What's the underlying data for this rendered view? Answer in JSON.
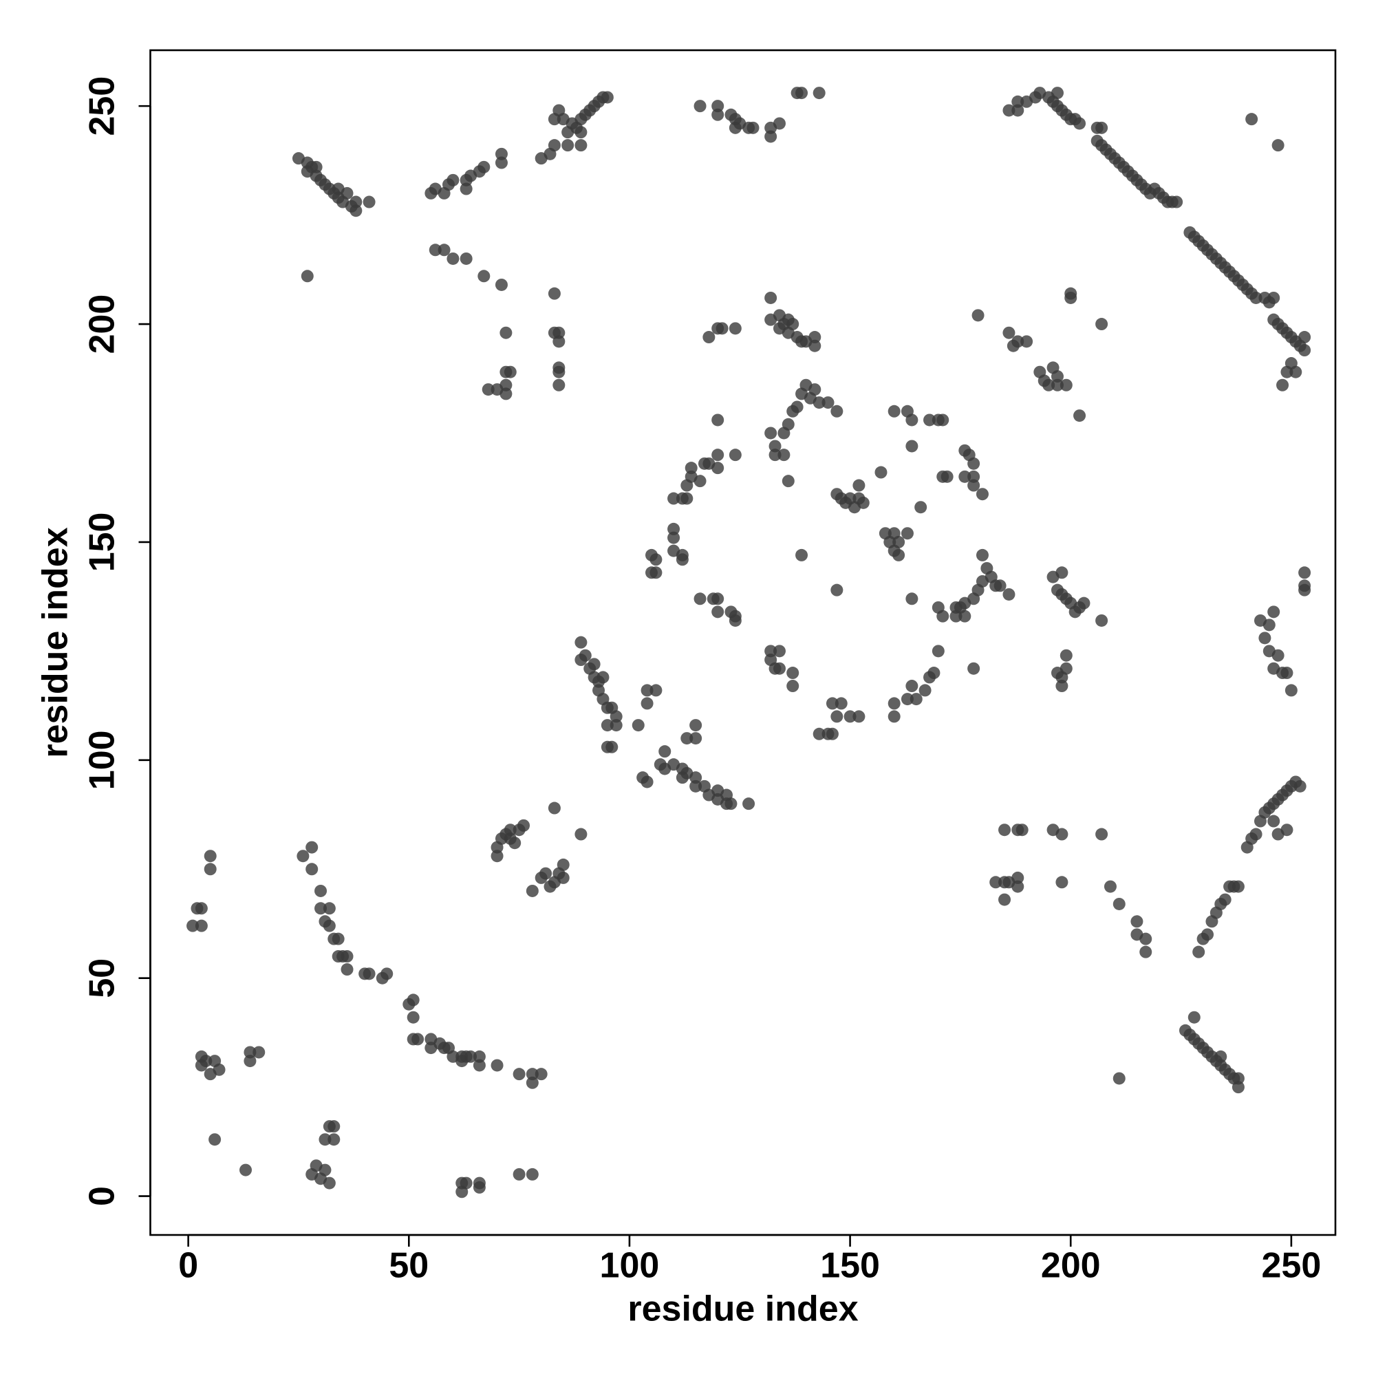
{
  "chart_data": {
    "type": "scatter",
    "xlabel": "residue index",
    "ylabel": "residue index",
    "xlim": [
      -8.6,
      260
    ],
    "ylim": [
      -8.9,
      262.8
    ],
    "xticks": [
      0,
      50,
      100,
      150,
      200,
      250
    ],
    "yticks": [
      0,
      50,
      100,
      150,
      200,
      250
    ],
    "color": "#3a3a3a",
    "opacity": 0.8,
    "grid": false,
    "x": [
      1,
      2,
      3,
      3,
      5,
      5,
      3,
      3,
      4,
      5,
      6,
      7,
      6,
      13,
      14,
      14,
      16,
      26,
      28,
      28,
      28,
      29,
      30,
      31,
      31,
      32,
      32,
      33,
      33,
      30,
      30,
      31,
      32,
      32,
      33,
      34,
      34,
      35,
      36,
      36,
      40,
      41,
      44,
      45,
      50,
      51,
      51,
      51,
      52,
      55,
      55,
      57,
      58,
      59,
      60,
      62,
      62,
      63,
      64,
      66,
      66,
      70,
      75,
      78,
      78,
      80,
      62,
      62,
      63,
      66,
      66,
      75,
      78,
      27,
      25,
      27,
      27,
      28,
      29,
      29,
      30,
      31,
      32,
      33,
      34,
      34,
      35,
      36,
      37,
      38,
      38,
      41,
      55,
      56,
      58,
      59,
      60,
      63,
      63,
      64,
      66,
      67,
      71,
      71,
      56,
      58,
      60,
      63,
      67,
      71,
      80,
      82,
      83,
      83,
      84,
      85,
      86,
      86,
      87,
      88,
      89,
      89,
      90,
      91,
      92,
      93,
      94,
      95,
      89,
      68,
      70,
      72,
      72,
      72,
      73,
      72,
      83,
      83,
      84,
      84,
      84,
      84,
      84,
      70,
      70,
      71,
      72,
      73,
      73,
      74,
      75,
      76,
      83,
      89,
      78,
      80,
      81,
      82,
      83,
      84,
      85,
      85,
      89,
      89,
      90,
      91,
      92,
      92,
      93,
      93,
      94,
      94,
      95,
      95,
      96,
      97,
      97,
      96,
      95,
      102,
      103,
      104,
      107,
      108,
      110,
      112,
      112,
      113,
      115,
      115,
      117,
      118,
      120,
      120,
      122,
      122,
      123,
      127,
      104,
      104,
      106,
      108,
      113,
      115,
      115,
      105,
      105,
      106,
      106,
      110,
      110,
      110,
      112,
      112,
      110,
      112,
      113,
      113,
      114,
      114,
      116,
      117,
      118,
      120,
      120,
      120,
      124,
      116,
      119,
      120,
      120,
      123,
      124,
      124,
      116,
      120,
      120,
      123,
      124,
      124,
      125,
      127,
      128,
      132,
      132,
      134,
      138,
      139,
      143,
      118,
      120,
      121,
      124,
      132,
      132,
      134,
      134,
      135,
      136,
      136,
      137,
      138,
      139,
      140,
      142,
      142,
      132,
      133,
      133,
      135,
      135,
      136,
      137,
      138,
      139,
      140,
      141,
      142,
      143,
      145,
      147,
      136,
      132,
      132,
      133,
      134,
      134,
      137,
      137,
      139,
      143,
      145,
      146,
      146,
      147,
      148,
      150,
      152,
      147,
      147,
      148,
      149,
      150,
      151,
      152,
      152,
      153,
      157,
      158,
      159,
      160,
      160,
      161,
      161,
      163,
      160,
      163,
      164,
      164,
      166,
      168,
      170,
      171,
      171,
      172,
      160,
      160,
      163,
      164,
      165,
      167,
      168,
      169,
      170,
      170,
      171,
      174,
      175,
      176,
      164,
      176,
      177,
      178,
      178,
      178,
      180,
      176,
      178,
      174,
      176,
      178,
      179,
      180,
      181,
      182,
      183,
      184,
      186,
      180,
      179,
      186,
      187,
      188,
      190,
      193,
      194,
      195,
      196,
      197,
      197,
      199,
      202,
      200,
      200,
      207,
      185,
      188,
      189,
      196,
      198,
      207,
      183,
      185,
      186,
      188,
      188,
      185,
      198,
      196,
      197,
      198,
      198,
      199,
      200,
      201,
      202,
      203,
      207,
      197,
      198,
      199,
      199,
      198,
      209,
      211,
      215,
      215,
      217,
      217,
      211,
      186,
      188,
      188,
      190,
      192,
      193,
      195,
      196,
      197,
      197,
      198,
      199,
      200,
      201,
      202,
      206,
      207,
      206,
      207,
      208,
      209,
      210,
      211,
      212,
      213,
      214,
      215,
      216,
      217,
      218,
      219,
      220,
      221,
      222,
      223,
      224,
      227,
      228,
      229,
      230,
      231,
      232,
      233,
      234,
      235,
      236,
      237,
      238,
      239,
      240,
      241,
      242,
      244,
      245,
      246,
      246,
      247,
      248,
      249,
      250,
      251,
      252,
      253,
      253,
      248,
      249,
      250,
      251,
      241,
      247,
      226,
      227,
      228,
      228,
      229,
      230,
      231,
      232,
      233,
      234,
      234,
      235,
      236,
      237,
      238,
      238,
      229,
      230,
      231,
      232,
      233,
      234,
      235,
      236,
      237,
      238,
      240,
      241,
      242,
      243,
      244,
      245,
      246,
      247,
      248,
      249,
      250,
      251,
      252,
      247,
      249,
      246,
      243,
      244,
      245,
      246,
      245,
      246,
      247,
      248,
      249,
      250,
      253,
      253,
      253
    ],
    "values": [
      62,
      66,
      66,
      62,
      78,
      75,
      32,
      30,
      31,
      28,
      31,
      29,
      13,
      6,
      33,
      31,
      33,
      78,
      80,
      75,
      5,
      7,
      4,
      6,
      13,
      3,
      16,
      13,
      16,
      70,
      66,
      63,
      62,
      66,
      59,
      59,
      55,
      55,
      52,
      55,
      51,
      51,
      50,
      51,
      44,
      45,
      41,
      36,
      36,
      36,
      34,
      35,
      34,
      34,
      32,
      32,
      31,
      32,
      32,
      30,
      32,
      30,
      28,
      28,
      26,
      28,
      1,
      3,
      3,
      3,
      2,
      5,
      5,
      211,
      238,
      237,
      235,
      236,
      234,
      236,
      233,
      232,
      231,
      230,
      229,
      231,
      228,
      230,
      227,
      226,
      228,
      228,
      230,
      231,
      230,
      232,
      233,
      233,
      231,
      234,
      235,
      236,
      237,
      239,
      217,
      217,
      215,
      215,
      211,
      209,
      238,
      239,
      241,
      247,
      249,
      247,
      244,
      241,
      246,
      245,
      244,
      247,
      248,
      249,
      250,
      251,
      252,
      252,
      241,
      185,
      185,
      186,
      184,
      189,
      189,
      198,
      207,
      198,
      198,
      196,
      190,
      186,
      189,
      80,
      78,
      82,
      83,
      84,
      82,
      81,
      84,
      85,
      89,
      83,
      70,
      73,
      74,
      71,
      72,
      74,
      73,
      76,
      127,
      123,
      124,
      121,
      119,
      122,
      118,
      116,
      114,
      119,
      112,
      108,
      112,
      110,
      108,
      103,
      103,
      108,
      96,
      95,
      99,
      98,
      99,
      98,
      96,
      97,
      96,
      94,
      94,
      92,
      93,
      91,
      92,
      90,
      90,
      90,
      116,
      113,
      116,
      102,
      105,
      105,
      108,
      147,
      143,
      146,
      143,
      153,
      151,
      148,
      146,
      147,
      160,
      160,
      160,
      163,
      165,
      167,
      164,
      168,
      168,
      170,
      167,
      178,
      170,
      137,
      137,
      137,
      134,
      134,
      133,
      132,
      250,
      250,
      248,
      248,
      247,
      245,
      246,
      245,
      245,
      245,
      243,
      246,
      253,
      253,
      253,
      197,
      199,
      199,
      199,
      206,
      201,
      202,
      199,
      200,
      201,
      198,
      200,
      197,
      196,
      196,
      197,
      195,
      175,
      172,
      170,
      170,
      175,
      177,
      180,
      181,
      184,
      186,
      183,
      185,
      182,
      182,
      180,
      164,
      125,
      123,
      121,
      125,
      121,
      120,
      117,
      147,
      106,
      106,
      106,
      113,
      110,
      113,
      110,
      110,
      139,
      161,
      160,
      159,
      160,
      158,
      160,
      163,
      159,
      166,
      152,
      150,
      152,
      148,
      147,
      150,
      152,
      180,
      180,
      178,
      172,
      158,
      178,
      178,
      178,
      165,
      165,
      110,
      113,
      114,
      117,
      114,
      116,
      119,
      120,
      125,
      135,
      133,
      133,
      135,
      133,
      137,
      171,
      170,
      168,
      165,
      163,
      161,
      165,
      121,
      135,
      136,
      137,
      139,
      141,
      144,
      142,
      140,
      140,
      138,
      147,
      202,
      198,
      195,
      196,
      196,
      189,
      187,
      186,
      190,
      188,
      186,
      186,
      179,
      207,
      206,
      200,
      84,
      84,
      84,
      84,
      83,
      83,
      72,
      72,
      72,
      73,
      71,
      68,
      72,
      142,
      139,
      138,
      143,
      137,
      136,
      134,
      135,
      136,
      132,
      120,
      119,
      121,
      124,
      117,
      71,
      67,
      63,
      60,
      59,
      56,
      27,
      249,
      249,
      251,
      251,
      252,
      253,
      252,
      251,
      250,
      253,
      249,
      248,
      247,
      247,
      246,
      245,
      245,
      242,
      241,
      240,
      239,
      238,
      237,
      236,
      235,
      234,
      233,
      232,
      231,
      230,
      231,
      230,
      229,
      228,
      228,
      228,
      221,
      220,
      219,
      218,
      217,
      216,
      215,
      214,
      213,
      212,
      211,
      210,
      209,
      208,
      207,
      206,
      206,
      205,
      206,
      201,
      200,
      199,
      198,
      197,
      196,
      195,
      197,
      194,
      186,
      189,
      191,
      189,
      247,
      241,
      38,
      37,
      36,
      41,
      35,
      34,
      33,
      32,
      31,
      32,
      30,
      29,
      28,
      27,
      27,
      25,
      56,
      59,
      60,
      63,
      65,
      67,
      68,
      71,
      71,
      71,
      80,
      82,
      83,
      86,
      88,
      89,
      90,
      91,
      92,
      93,
      94,
      95,
      94,
      83,
      84,
      86,
      132,
      128,
      131,
      134,
      125,
      121,
      124,
      120,
      120,
      116,
      143,
      140,
      139
    ]
  }
}
